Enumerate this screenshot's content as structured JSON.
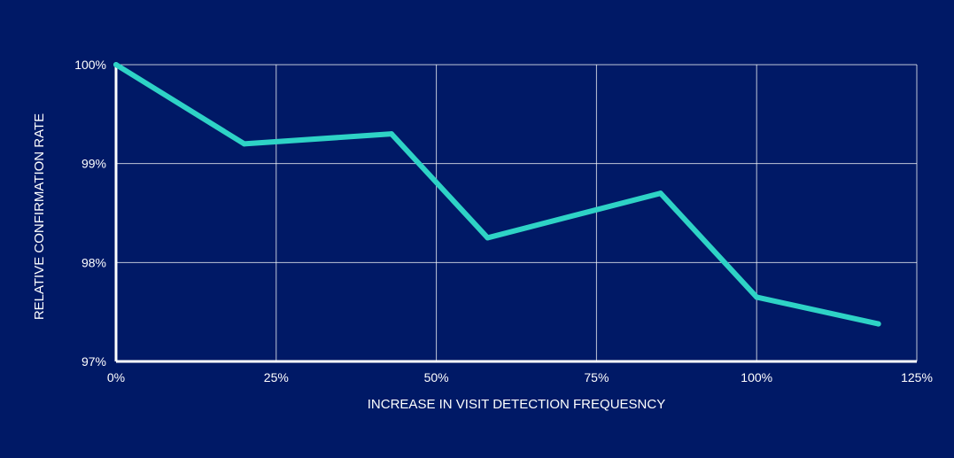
{
  "colors": {
    "background": "#001966",
    "line": "#2ed3c6",
    "grid": "#ffffff",
    "axis": "#ffffff",
    "text": "#ffffff"
  },
  "chart_data": {
    "type": "line",
    "title": "",
    "xlabel": "INCREASE IN VISIT DETECTION FREQUESNCY",
    "ylabel": "RELATIVE CONFIRMATION RATE",
    "xlim": [
      0,
      125
    ],
    "ylim": [
      97,
      100
    ],
    "x_ticks": [
      0,
      25,
      50,
      75,
      100,
      125
    ],
    "x_tick_labels": [
      "0%",
      "25%",
      "50%",
      "75%",
      "100%",
      "125%"
    ],
    "y_ticks": [
      97,
      98,
      99,
      100
    ],
    "y_tick_labels": [
      "97%",
      "98%",
      "99%",
      "100%"
    ],
    "grid": true,
    "legend": "none",
    "series": [
      {
        "x": [
          0,
          20,
          43,
          58,
          85,
          100,
          119
        ],
        "y": [
          100,
          99.2,
          99.3,
          98.25,
          98.7,
          97.65,
          97.38
        ]
      }
    ]
  }
}
